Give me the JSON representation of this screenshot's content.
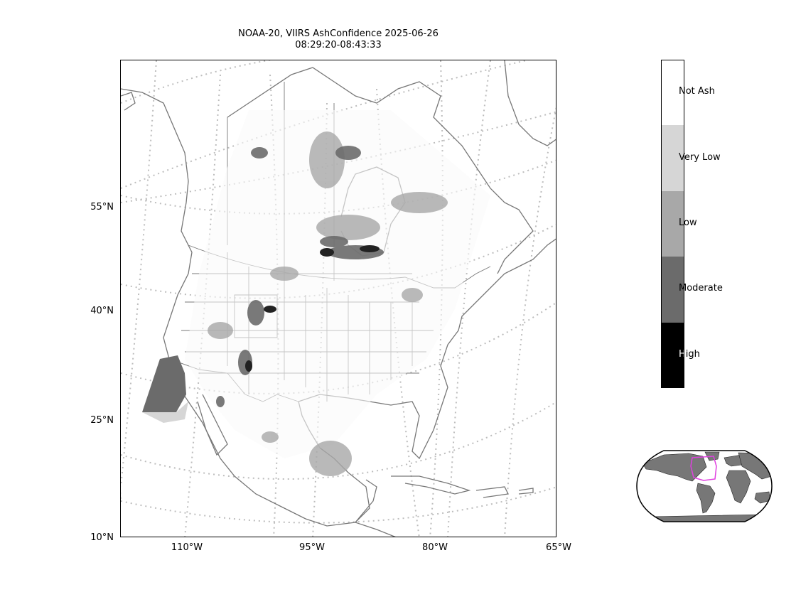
{
  "title": {
    "line1": "NOAA-20, VIIRS AshConfidence 2025-06-26",
    "line2": "08:29:20-08:43:33"
  },
  "map": {
    "lat_ticks": [
      "55°N",
      "40°N",
      "25°N",
      "10°N"
    ],
    "lon_ticks": [
      "110°W",
      "95°W",
      "80°W",
      "65°W"
    ],
    "graticule_color": "#bdbdbd",
    "coastline_color": "#777777"
  },
  "colorbar": {
    "categories": [
      {
        "label": "Not Ash",
        "color": "#ffffff"
      },
      {
        "label": "Very Low",
        "color": "#d6d6d6"
      },
      {
        "label": "Low",
        "color": "#a8a8a8"
      },
      {
        "label": "Moderate",
        "color": "#6b6b6b"
      },
      {
        "label": "High",
        "color": "#000000"
      }
    ]
  },
  "inset": {
    "land_color": "#777777",
    "domain_outline_color": "#e040e0"
  }
}
